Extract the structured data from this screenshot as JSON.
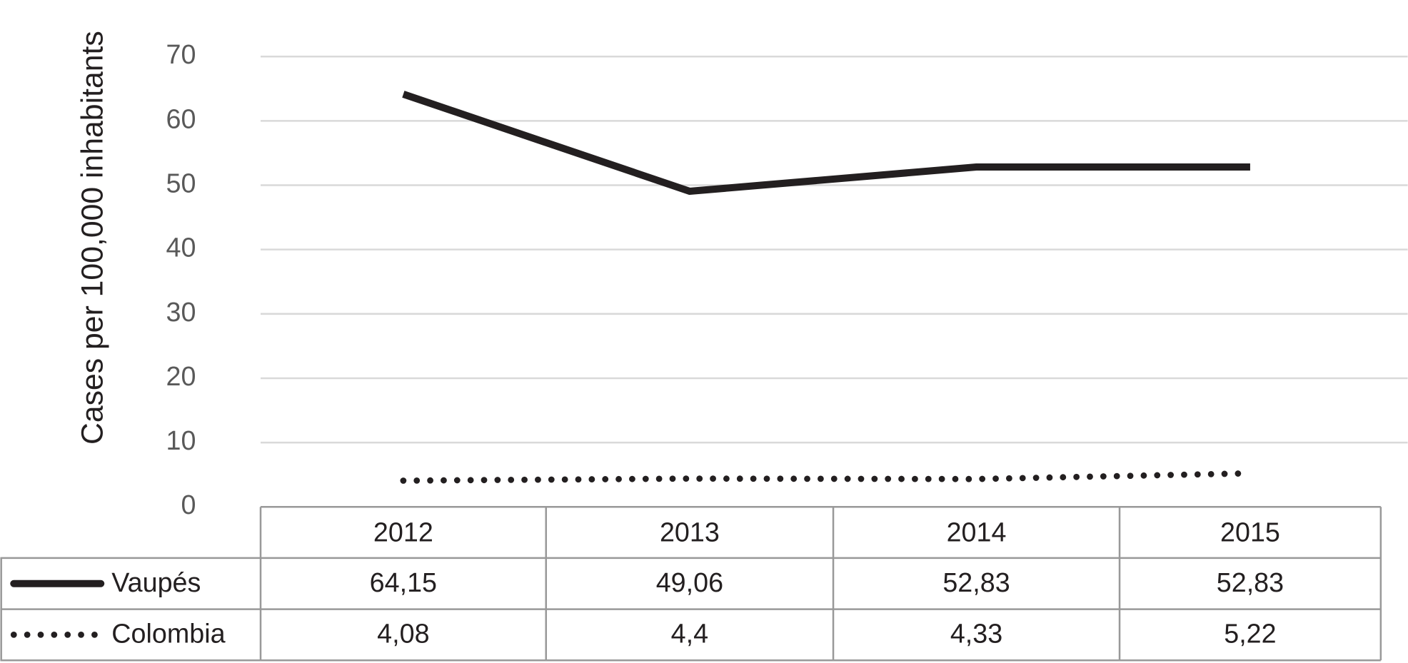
{
  "chart_data": {
    "type": "line",
    "y_label": "Cases per 100,000 inhabitants",
    "categories": [
      "2012",
      "2013",
      "2014",
      "2015"
    ],
    "series": [
      {
        "name": "Vaupés",
        "color": "#231f20",
        "dash": "solid",
        "values": [
          64.15,
          49.06,
          52.83,
          52.83
        ],
        "value_labels": [
          "64,15",
          "49,06",
          "52,83",
          "52,83"
        ]
      },
      {
        "name": "Colombia",
        "color": "#231f20",
        "dash": "dotted",
        "values": [
          4.08,
          4.4,
          4.33,
          5.22
        ],
        "value_labels": [
          "4,08",
          "4,4",
          "4,33",
          "5,22"
        ]
      }
    ],
    "ylim": [
      0,
      70
    ],
    "yticks": [
      0,
      10,
      20,
      30,
      40,
      50,
      60,
      70
    ],
    "grid": true,
    "data_table": true
  }
}
